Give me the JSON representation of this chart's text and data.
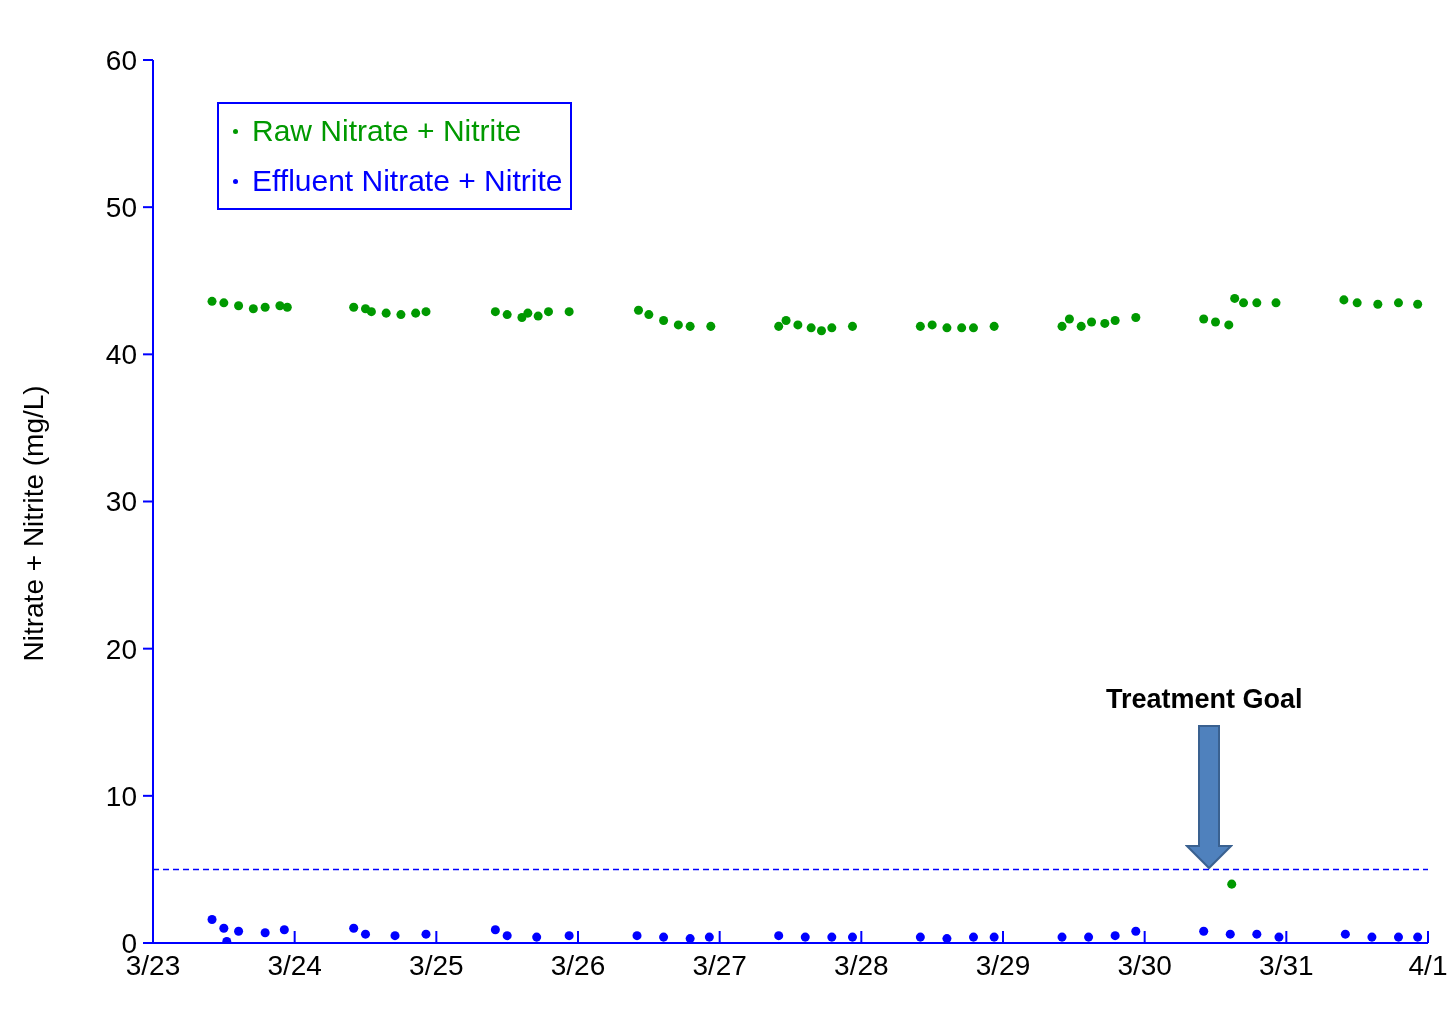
{
  "chart_data": {
    "type": "scatter",
    "ylabel": "Nitrate + Nitrite (mg/L)",
    "xlim": [
      "--03-23",
      "--04-01"
    ],
    "xticks": [
      {
        "value": "--03-23",
        "label": "3/23"
      },
      {
        "value": "--03-24",
        "label": "3/24"
      },
      {
        "value": "--03-25",
        "label": "3/25"
      },
      {
        "value": "--03-26",
        "label": "3/26"
      },
      {
        "value": "--03-27",
        "label": "3/27"
      },
      {
        "value": "--03-28",
        "label": "3/28"
      },
      {
        "value": "--03-29",
        "label": "3/29"
      },
      {
        "value": "--03-30",
        "label": "3/30"
      },
      {
        "value": "--03-31",
        "label": "3/31"
      },
      {
        "value": "--04-01",
        "label": "4/1"
      }
    ],
    "ylim": [
      0,
      60
    ],
    "yticks": [
      0,
      10,
      20,
      30,
      40,
      50,
      60
    ],
    "grid": false,
    "legend": "top left",
    "marker": "circle",
    "series": [
      {
        "name": "Raw Nitrate + Nitrite",
        "color": "#009900",
        "x": [
          "--03-23T10:00",
          "--03-23T12:00",
          "--03-23T14:30",
          "--03-23T17:00",
          "--03-23T19:00",
          "--03-23T21:30",
          "--03-23T22:45",
          "--03-24T10:00",
          "--03-24T12:00",
          "--03-24T13:00",
          "--03-24T15:30",
          "--03-24T18:00",
          "--03-24T20:30",
          "--03-24T22:15",
          "--03-25T10:00",
          "--03-25T12:00",
          "--03-25T14:30",
          "--03-25T15:30",
          "--03-25T17:15",
          "--03-25T19:00",
          "--03-25T22:30",
          "--03-26T10:15",
          "--03-26T12:00",
          "--03-26T14:30",
          "--03-26T17:00",
          "--03-26T19:00",
          "--03-26T22:30",
          "--03-27T10:00",
          "--03-27T11:15",
          "--03-27T13:15",
          "--03-27T15:30",
          "--03-27T17:15",
          "--03-27T19:00",
          "--03-27T22:30",
          "--03-28T10:00",
          "--03-28T12:00",
          "--03-28T14:30",
          "--03-28T17:00",
          "--03-28T19:00",
          "--03-28T22:30",
          "--03-29T10:00",
          "--03-29T11:15",
          "--03-29T13:15",
          "--03-29T15:00",
          "--03-29T17:15",
          "--03-29T19:00",
          "--03-29T22:30",
          "--03-30T10:00",
          "--03-30T12:00",
          "--03-30T14:15",
          "--03-30T14:45",
          "--03-30T15:15",
          "--03-30T16:45",
          "--03-30T19:00",
          "--03-30T22:15",
          "--03-31T09:45",
          "--03-31T12:00",
          "--03-31T15:30",
          "--03-31T19:00",
          "--03-31T22:15"
        ],
        "values": [
          43.6,
          43.5,
          43.3,
          43.1,
          43.2,
          43.3,
          43.2,
          43.2,
          43.1,
          42.9,
          42.8,
          42.7,
          42.8,
          42.9,
          42.9,
          42.7,
          42.5,
          42.8,
          42.6,
          42.9,
          42.9,
          43.0,
          42.7,
          42.3,
          42.0,
          41.9,
          41.9,
          41.9,
          42.3,
          42.0,
          41.8,
          41.6,
          41.8,
          41.9,
          41.9,
          42.0,
          41.8,
          41.8,
          41.8,
          41.9,
          41.9,
          42.4,
          41.9,
          42.2,
          42.1,
          42.3,
          42.5,
          42.4,
          42.2,
          42.0,
          4.0,
          43.8,
          43.5,
          43.5,
          43.5,
          43.7,
          43.5,
          43.4,
          43.5,
          43.4
        ]
      },
      {
        "name": "Effluent Nitrate + Nitrite",
        "color": "#0000ff",
        "x": [
          "--03-23T10:00",
          "--03-23T12:00",
          "--03-23T12:30",
          "--03-23T14:30",
          "--03-23T19:00",
          "--03-23T22:15",
          "--03-24T10:00",
          "--03-24T12:00",
          "--03-24T17:00",
          "--03-24T22:15",
          "--03-25T10:00",
          "--03-25T12:00",
          "--03-25T17:00",
          "--03-25T22:30",
          "--03-26T10:00",
          "--03-26T14:30",
          "--03-26T19:00",
          "--03-26T22:15",
          "--03-27T10:00",
          "--03-27T14:30",
          "--03-27T19:00",
          "--03-27T22:30",
          "--03-28T10:00",
          "--03-28T14:30",
          "--03-28T19:00",
          "--03-28T22:30",
          "--03-29T10:00",
          "--03-29T14:30",
          "--03-29T19:00",
          "--03-29T22:30",
          "--03-30T10:00",
          "--03-30T14:30",
          "--03-30T19:00",
          "--03-30T22:45",
          "--03-31T10:00",
          "--03-31T14:30",
          "--03-31T19:00",
          "--03-31T22:15"
        ],
        "values": [
          1.6,
          1.0,
          0.1,
          0.8,
          0.7,
          0.9,
          1.0,
          0.6,
          0.5,
          0.6,
          0.9,
          0.5,
          0.4,
          0.5,
          0.5,
          0.4,
          0.3,
          0.4,
          0.5,
          0.4,
          0.4,
          0.4,
          0.4,
          0.3,
          0.4,
          0.4,
          0.4,
          0.4,
          0.5,
          0.8,
          0.8,
          0.6,
          0.6,
          0.4,
          0.6,
          0.4,
          0.4,
          0.4
        ]
      }
    ],
    "ref_lines": [
      {
        "axis": "y",
        "value": 5,
        "color": "#0000ff",
        "line_style": "dashed"
      }
    ],
    "annotations": [
      "Treatment Goal"
    ]
  }
}
